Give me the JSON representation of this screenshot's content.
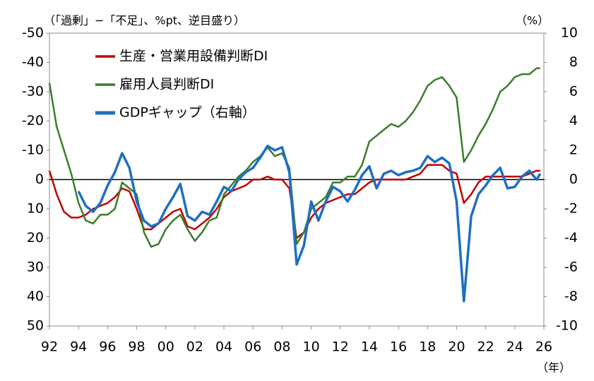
{
  "chart_data": {
    "type": "line",
    "y_label": "（「過剰」−「不足」、%pt、逆目盛り）",
    "y2_label": "（%）",
    "x_label": "（年）",
    "legend": "upper left",
    "xlim": [
      1992,
      2026
    ],
    "xticks": [
      {
        "value": 1992,
        "label": "92"
      },
      {
        "value": 1994,
        "label": "94"
      },
      {
        "value": 1996,
        "label": "96"
      },
      {
        "value": 1998,
        "label": "98"
      },
      {
        "value": 2000,
        "label": "00"
      },
      {
        "value": 2002,
        "label": "02"
      },
      {
        "value": 2004,
        "label": "04"
      },
      {
        "value": 2006,
        "label": "06"
      },
      {
        "value": 2008,
        "label": "08"
      },
      {
        "value": 2010,
        "label": "10"
      },
      {
        "value": 2012,
        "label": "12"
      },
      {
        "value": 2014,
        "label": "14"
      },
      {
        "value": 2016,
        "label": "16"
      },
      {
        "value": 2018,
        "label": "18"
      },
      {
        "value": 2020,
        "label": "20"
      },
      {
        "value": 2022,
        "label": "22"
      },
      {
        "value": 2024,
        "label": "24"
      },
      {
        "value": 2026,
        "label": "26"
      }
    ],
    "ylim": [
      50,
      -50
    ],
    "yticks": [
      -50,
      -40,
      -30,
      -20,
      -10,
      0,
      10,
      20,
      30,
      40,
      50
    ],
    "y2lim": [
      -10,
      10
    ],
    "y2ticks": [
      10,
      8,
      6,
      4,
      2,
      0,
      -2,
      -4,
      -6,
      -8,
      -10
    ],
    "x": [
      1992,
      1992.5,
      1993,
      1993.5,
      1994,
      1994.5,
      1995,
      1995.5,
      1996,
      1996.5,
      1997,
      1997.5,
      1998,
      1998.5,
      1999,
      1999.5,
      2000,
      2000.5,
      2001,
      2001.5,
      2002,
      2002.5,
      2003,
      2003.5,
      2004,
      2004.5,
      2005,
      2005.5,
      2006,
      2006.5,
      2007,
      2007.5,
      2008,
      2008.5,
      2009,
      2009.5,
      2010,
      2010.5,
      2011,
      2011.5,
      2012,
      2012.5,
      2013,
      2013.5,
      2014,
      2014.5,
      2015,
      2015.5,
      2016,
      2016.5,
      2017,
      2017.5,
      2018,
      2018.5,
      2019,
      2019.5,
      2020,
      2020.5,
      2021,
      2021.5,
      2022,
      2022.5,
      2023,
      2023.5,
      2024,
      2024.5,
      2025,
      2025.5,
      2025.75
    ],
    "series": [
      {
        "name": "生産・営業用設備判断DI",
        "color": "#c00000",
        "values": [
          -3,
          5,
          11,
          13,
          13,
          12,
          10,
          9,
          8,
          6,
          3,
          4,
          10,
          17,
          17,
          15,
          13,
          11,
          10,
          16,
          17,
          15,
          13,
          10,
          6,
          4,
          3,
          2,
          0,
          0,
          -1,
          0,
          0,
          3,
          20,
          18,
          13,
          10,
          8,
          7,
          6,
          5,
          5,
          3,
          1,
          0,
          0,
          0,
          0,
          0,
          -1,
          -2,
          -5,
          -5,
          -5,
          -3,
          -2,
          8,
          5,
          1,
          -1,
          -1,
          -1,
          -1,
          -1,
          -1,
          -2,
          -3,
          -3
        ]
      },
      {
        "name": "雇用人員判断DI",
        "color": "#3a7d2c",
        "values": [
          -33,
          -18,
          -10,
          -2,
          8,
          14,
          15,
          12,
          12,
          10,
          1,
          3,
          5,
          18,
          23,
          22,
          17,
          14,
          12,
          17,
          21,
          18,
          14,
          13,
          5,
          2,
          -1,
          -3,
          -6,
          -8,
          -11,
          -8,
          -9,
          -4,
          22,
          18,
          10,
          8,
          6,
          1,
          1,
          -1,
          -1,
          -5,
          -13,
          -15,
          -17,
          -19,
          -18,
          -20,
          -23,
          -27,
          -32,
          -34,
          -35,
          -32,
          -28,
          -6,
          -10,
          -15,
          -19,
          -24,
          -30,
          -32,
          -35,
          -36,
          -36,
          -38,
          -38
        ]
      },
      {
        "name": "GDPギャップ（右軸）",
        "color": "#1f6fc0",
        "axis": "y2",
        "values": [
          null,
          null,
          null,
          null,
          -0.8,
          -1.8,
          -2.2,
          -1.6,
          -0.4,
          0.5,
          1.8,
          0.8,
          -1.5,
          -2.8,
          -3.2,
          -3.0,
          -2.0,
          -1.2,
          -0.3,
          -2.5,
          -2.8,
          -2.2,
          -2.4,
          -1.5,
          -0.5,
          -0.8,
          0,
          0.5,
          0.8,
          1.5,
          2.3,
          2.0,
          2.2,
          0.5,
          -5.8,
          -4.5,
          -1.5,
          -2.8,
          -1.5,
          -0.5,
          -0.8,
          -1.5,
          -0.7,
          0.3,
          0.9,
          -0.6,
          0.4,
          0.6,
          0.3,
          0.5,
          0.6,
          0.8,
          1.6,
          1.2,
          1.5,
          1.1,
          -1.5,
          -8.3,
          -2.5,
          -1.0,
          -0.4,
          0.3,
          0.8,
          -0.6,
          -0.5,
          0.2,
          0.6,
          0,
          0.4
        ]
      }
    ]
  }
}
